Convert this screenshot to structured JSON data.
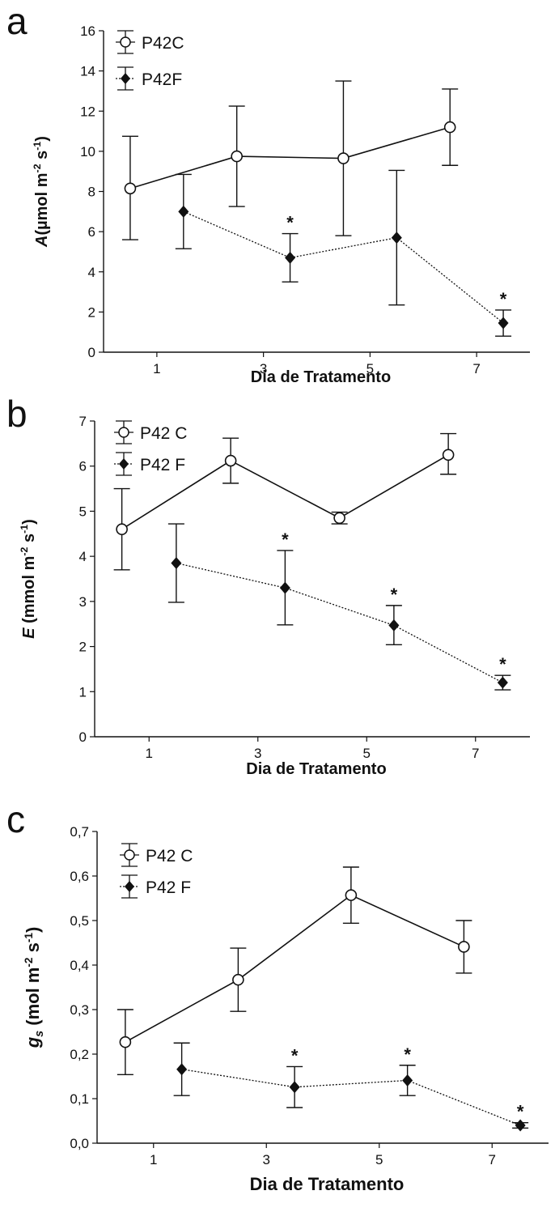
{
  "chart_data": [
    {
      "type": "line",
      "panel_label": "a",
      "ylabel_main": "A",
      "ylabel_unit": "(µmol m",
      "ylabel_sup1": "-2",
      "ylabel_mid": " s",
      "ylabel_sup2": "-1",
      "ylabel_end": ")",
      "xlabel": "Dia de Tratamento",
      "ylim": [
        0,
        16
      ],
      "yticks": [
        0,
        2,
        4,
        6,
        8,
        10,
        12,
        14,
        16
      ],
      "ytick_labels": [
        "0",
        "2",
        "4",
        "6",
        "8",
        "10",
        "12",
        "14",
        "16"
      ],
      "xlim": [
        0,
        8
      ],
      "xticks": [
        1,
        3,
        5,
        7
      ],
      "xtick_labels": [
        "1",
        "3",
        "5",
        "7"
      ],
      "legend_position": "top-left",
      "series": [
        {
          "name": "P42C",
          "marker": "open-circle",
          "line": "solid",
          "x": [
            0.5,
            2.5,
            4.5,
            6.5
          ],
          "y": [
            8.15,
            9.75,
            9.65,
            11.2
          ],
          "err_low": [
            5.6,
            7.25,
            5.8,
            9.3
          ],
          "err_high": [
            10.75,
            12.25,
            13.5,
            13.1
          ],
          "significance": [
            "",
            "",
            "",
            ""
          ]
        },
        {
          "name": "P42F",
          "marker": "filled-diamond",
          "line": "dotted",
          "x": [
            1.5,
            3.5,
            5.5,
            7.5
          ],
          "y": [
            7.0,
            4.7,
            5.7,
            1.45
          ],
          "err_low": [
            5.15,
            3.5,
            2.35,
            0.8
          ],
          "err_high": [
            8.85,
            5.9,
            9.05,
            2.1
          ],
          "significance": [
            "",
            "*",
            "",
            "*"
          ]
        }
      ]
    },
    {
      "type": "line",
      "panel_label": "b",
      "ylabel_main": "E",
      "ylabel_unit": " (mmol m",
      "ylabel_sup1": "-2",
      "ylabel_mid": " s",
      "ylabel_sup2": "-1",
      "ylabel_end": ")",
      "xlabel": "Dia de Tratamento",
      "ylim": [
        0,
        7
      ],
      "yticks": [
        0,
        1,
        2,
        3,
        4,
        5,
        6,
        7
      ],
      "ytick_labels": [
        "0",
        "1",
        "2",
        "3",
        "4",
        "5",
        "6",
        "7"
      ],
      "xlim": [
        0,
        8
      ],
      "xticks": [
        1,
        3,
        5,
        7
      ],
      "xtick_labels": [
        "1",
        "3",
        "5",
        "7"
      ],
      "legend_position": "top-left",
      "series": [
        {
          "name": "P42 C",
          "marker": "open-circle",
          "line": "solid",
          "x": [
            0.5,
            2.5,
            4.5,
            6.5
          ],
          "y": [
            4.6,
            6.12,
            4.85,
            6.25
          ],
          "err_low": [
            3.7,
            5.62,
            4.72,
            5.82
          ],
          "err_high": [
            5.5,
            6.62,
            4.98,
            6.72
          ],
          "significance": [
            "",
            "",
            "",
            ""
          ]
        },
        {
          "name": "P42 F",
          "marker": "filled-diamond",
          "line": "dotted",
          "x": [
            1.5,
            3.5,
            5.5,
            7.5
          ],
          "y": [
            3.85,
            3.3,
            2.47,
            1.2
          ],
          "err_low": [
            2.98,
            2.48,
            2.04,
            1.04
          ],
          "err_high": [
            4.72,
            4.13,
            2.91,
            1.36
          ],
          "significance": [
            "",
            "*",
            "*",
            "*"
          ]
        }
      ]
    },
    {
      "type": "line",
      "panel_label": "c",
      "ylabel_main": "g",
      "ylabel_sub": "s",
      "ylabel_unit": " (mol m",
      "ylabel_sup1": "-2",
      "ylabel_mid": " s",
      "ylabel_sup2": "-1",
      "ylabel_end": ")",
      "xlabel": "Dia de Tratamento",
      "ylim": [
        0,
        0.7
      ],
      "yticks": [
        0,
        0.1,
        0.2,
        0.3,
        0.4,
        0.5,
        0.6,
        0.7
      ],
      "ytick_labels": [
        "0,0",
        "0,1",
        "0,2",
        "0,3",
        "0,4",
        "0,5",
        "0,6",
        "0,7"
      ],
      "xlim": [
        0,
        8
      ],
      "xticks": [
        1,
        3,
        5,
        7
      ],
      "xtick_labels": [
        "1",
        "3",
        "5",
        "7"
      ],
      "legend_position": "top-left",
      "series": [
        {
          "name": "P42 C",
          "marker": "open-circle",
          "line": "solid",
          "x": [
            0.5,
            2.5,
            4.5,
            6.5
          ],
          "y": [
            0.227,
            0.367,
            0.557,
            0.441
          ],
          "err_low": [
            0.154,
            0.296,
            0.494,
            0.382
          ],
          "err_high": [
            0.3,
            0.438,
            0.62,
            0.5
          ],
          "significance": [
            "",
            "",
            "",
            ""
          ]
        },
        {
          "name": "P42 F",
          "marker": "filled-diamond",
          "line": "dotted",
          "x": [
            1.5,
            3.5,
            5.5,
            7.5
          ],
          "y": [
            0.166,
            0.126,
            0.141,
            0.04
          ],
          "err_low": [
            0.107,
            0.08,
            0.107,
            0.034
          ],
          "err_high": [
            0.225,
            0.172,
            0.175,
            0.046
          ],
          "significance": [
            "",
            "*",
            "*",
            "*"
          ]
        }
      ]
    }
  ]
}
